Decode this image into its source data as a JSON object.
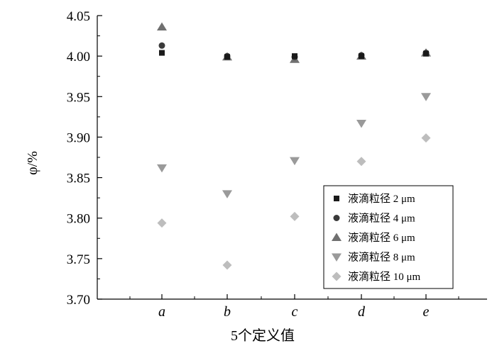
{
  "chart_data": {
    "type": "scatter",
    "categories": [
      "a",
      "b",
      "c",
      "d",
      "e"
    ],
    "xlabel": "5个定义值",
    "ylabel": "φ/%",
    "ylim": [
      3.7,
      4.05
    ],
    "yticks": [
      "3.70",
      "3.75",
      "3.80",
      "3.85",
      "3.90",
      "3.95",
      "4.00",
      "4.05"
    ],
    "grid": false,
    "legend_position": "bottom-right",
    "series": [
      {
        "name": "液滴粒径 2 μm",
        "marker": "square",
        "color": "#1a1a1a",
        "values": [
          4.004,
          3.999,
          4.0,
          4.0,
          4.003
        ]
      },
      {
        "name": "液滴粒径 4 μm",
        "marker": "circle",
        "color": "#3a3a3a",
        "values": [
          4.013,
          4.0,
          3.999,
          4.001,
          4.004
        ]
      },
      {
        "name": "液滴粒径 6 μm",
        "marker": "triangle-up",
        "color": "#707070",
        "values": [
          4.036,
          3.999,
          3.996,
          4.0,
          4.004
        ]
      },
      {
        "name": "液滴粒径 8 μm",
        "marker": "triangle-down",
        "color": "#9a9a9a",
        "values": [
          3.862,
          3.83,
          3.871,
          3.917,
          3.95
        ]
      },
      {
        "name": "液滴粒径 10 μm",
        "marker": "diamond",
        "color": "#bdbdbd",
        "values": [
          3.794,
          3.742,
          3.802,
          3.87,
          3.899
        ]
      }
    ]
  }
}
